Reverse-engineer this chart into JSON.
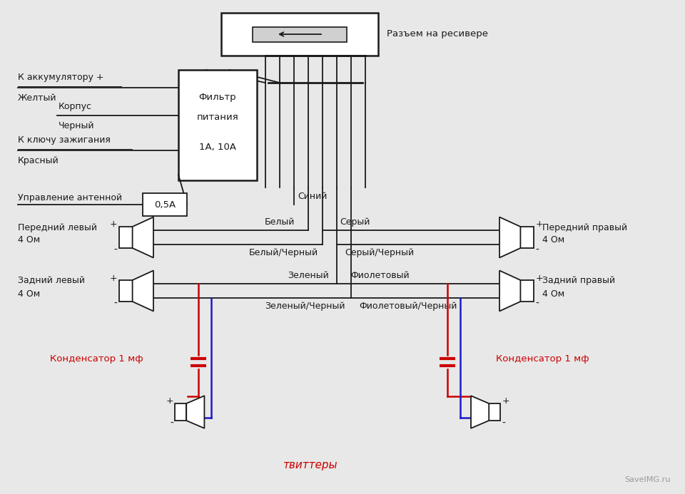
{
  "bg_color": "#e8e8e8",
  "black": "#1a1a1a",
  "red": "#cc0000",
  "blue": "#1a1acc",
  "dark": "#1a1a1a",
  "watermark": "SaveIMG.ru",
  "texts": {
    "receiver": "Разъем на ресивере",
    "filter1": "Фильтр",
    "filter2": "питания",
    "filter3": "1А, 10А",
    "fuse": "0,5А",
    "acc_plus": "К аккумулятору +",
    "yellow": "Желтый",
    "body": "Корпус",
    "black_wire": "Черный",
    "ignition": "К ключу зажигания",
    "red_wire": "Красный",
    "antenna": "Управление антенной",
    "blue_wire": "Синий",
    "fl": "Передний левый",
    "rl": "Задний левый",
    "fr": "Передний правый",
    "rr": "Задний правый",
    "ohm4": "4 Ом",
    "white": "Белый",
    "white_black": "Белый/Черный",
    "grey": "Серый",
    "grey_black": "Серый/Черный",
    "green": "Зеленый",
    "green_black": "Зеленый/Черный",
    "violet": "Фиолетовый",
    "violet_black": "Фиолетовый/Черный",
    "cap": "Конденсатор 1 мф",
    "tweeters": "твиттеры"
  }
}
